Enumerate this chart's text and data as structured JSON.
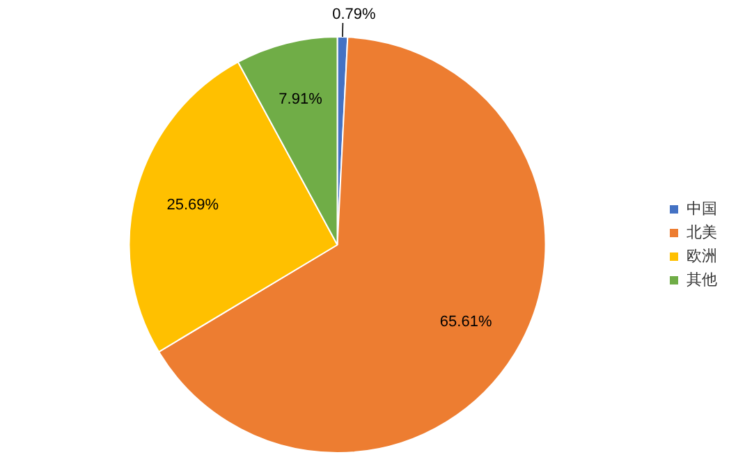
{
  "chart_data": {
    "type": "pie",
    "categories": [
      "中国",
      "北美",
      "欧洲",
      "其他"
    ],
    "values": [
      0.79,
      65.61,
      25.69,
      7.91
    ],
    "colors": [
      "#4472c4",
      "#ed7d31",
      "#ffc000",
      "#70ad47"
    ],
    "value_labels": [
      "0.79%",
      "65.61%",
      "25.69%",
      "7.91%"
    ],
    "legend": "right"
  }
}
